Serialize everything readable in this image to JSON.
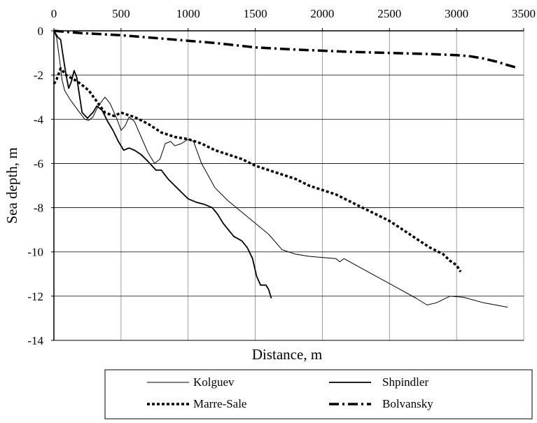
{
  "chart_data": {
    "type": "line",
    "title": "",
    "xlabel": "Distance, m",
    "ylabel": "Sea depth, m",
    "xlim": [
      0,
      3500
    ],
    "ylim": [
      -14,
      0
    ],
    "x_ticks": [
      0,
      500,
      1000,
      1500,
      2000,
      2500,
      3000,
      3500
    ],
    "y_ticks": [
      0,
      -2,
      -4,
      -6,
      -8,
      -10,
      -12,
      -14
    ],
    "x_tick_labels": [
      "0",
      "500",
      "1000",
      "1500",
      "2000",
      "2500",
      "3000",
      "3500"
    ],
    "y_tick_labels": [
      "0",
      "-2",
      "-4",
      "-6",
      "-8",
      "-10",
      "-12",
      "-14"
    ],
    "x_axis_position": "top",
    "grid": "vertical and horizontal",
    "legend_position": "bottom",
    "series": [
      {
        "name": "Kolguev",
        "style": "thin-solid",
        "color": "#000000",
        "points": [
          [
            0,
            0
          ],
          [
            20,
            -0.3
          ],
          [
            40,
            -1.2
          ],
          [
            60,
            -2.2
          ],
          [
            80,
            -2.7
          ],
          [
            120,
            -3.1
          ],
          [
            180,
            -3.6
          ],
          [
            230,
            -4.0
          ],
          [
            260,
            -4.05
          ],
          [
            290,
            -3.9
          ],
          [
            330,
            -3.4
          ],
          [
            380,
            -3.0
          ],
          [
            420,
            -3.3
          ],
          [
            470,
            -4.0
          ],
          [
            500,
            -4.5
          ],
          [
            530,
            -4.3
          ],
          [
            560,
            -3.9
          ],
          [
            600,
            -4.1
          ],
          [
            650,
            -4.8
          ],
          [
            700,
            -5.5
          ],
          [
            750,
            -6.0
          ],
          [
            790,
            -5.8
          ],
          [
            830,
            -5.1
          ],
          [
            870,
            -5.0
          ],
          [
            900,
            -5.2
          ],
          [
            950,
            -5.1
          ],
          [
            1000,
            -4.9
          ],
          [
            1040,
            -5.0
          ],
          [
            1100,
            -6.0
          ],
          [
            1200,
            -7.1
          ],
          [
            1300,
            -7.7
          ],
          [
            1400,
            -8.2
          ],
          [
            1500,
            -8.7
          ],
          [
            1600,
            -9.2
          ],
          [
            1700,
            -9.9
          ],
          [
            1800,
            -10.1
          ],
          [
            1900,
            -10.2
          ],
          [
            2000,
            -10.25
          ],
          [
            2100,
            -10.3
          ],
          [
            2130,
            -10.45
          ],
          [
            2160,
            -10.3
          ],
          [
            2250,
            -10.6
          ],
          [
            2400,
            -11.1
          ],
          [
            2550,
            -11.6
          ],
          [
            2700,
            -12.1
          ],
          [
            2780,
            -12.4
          ],
          [
            2850,
            -12.3
          ],
          [
            2950,
            -12.0
          ],
          [
            3050,
            -12.05
          ],
          [
            3200,
            -12.3
          ],
          [
            3380,
            -12.5
          ]
        ]
      },
      {
        "name": "Shpindler",
        "style": "medium-solid",
        "color": "#000000",
        "points": [
          [
            0,
            0
          ],
          [
            30,
            -0.3
          ],
          [
            50,
            -0.4
          ],
          [
            70,
            -1.2
          ],
          [
            90,
            -2.0
          ],
          [
            110,
            -2.6
          ],
          [
            130,
            -2.3
          ],
          [
            150,
            -1.8
          ],
          [
            170,
            -2.1
          ],
          [
            190,
            -2.9
          ],
          [
            210,
            -3.7
          ],
          [
            250,
            -3.95
          ],
          [
            290,
            -3.7
          ],
          [
            320,
            -3.4
          ],
          [
            360,
            -3.6
          ],
          [
            400,
            -4.1
          ],
          [
            440,
            -4.5
          ],
          [
            480,
            -5.0
          ],
          [
            520,
            -5.4
          ],
          [
            560,
            -5.3
          ],
          [
            600,
            -5.4
          ],
          [
            650,
            -5.6
          ],
          [
            700,
            -5.9
          ],
          [
            760,
            -6.3
          ],
          [
            800,
            -6.3
          ],
          [
            850,
            -6.7
          ],
          [
            900,
            -7.0
          ],
          [
            950,
            -7.3
          ],
          [
            1000,
            -7.6
          ],
          [
            1060,
            -7.75
          ],
          [
            1120,
            -7.85
          ],
          [
            1180,
            -8.0
          ],
          [
            1220,
            -8.3
          ],
          [
            1260,
            -8.7
          ],
          [
            1300,
            -9.0
          ],
          [
            1340,
            -9.3
          ],
          [
            1400,
            -9.5
          ],
          [
            1440,
            -9.8
          ],
          [
            1480,
            -10.3
          ],
          [
            1510,
            -11.1
          ],
          [
            1540,
            -11.5
          ],
          [
            1580,
            -11.5
          ],
          [
            1600,
            -11.7
          ],
          [
            1620,
            -12.1
          ]
        ]
      },
      {
        "name": "Marre-Sale",
        "style": "short-dash",
        "color": "#000000",
        "points": [
          [
            0,
            -2.4
          ],
          [
            20,
            -2.2
          ],
          [
            50,
            -1.7
          ],
          [
            90,
            -2.0
          ],
          [
            150,
            -2.2
          ],
          [
            200,
            -2.4
          ],
          [
            260,
            -2.7
          ],
          [
            320,
            -3.2
          ],
          [
            380,
            -3.7
          ],
          [
            450,
            -3.85
          ],
          [
            500,
            -3.7
          ],
          [
            550,
            -3.8
          ],
          [
            600,
            -3.9
          ],
          [
            700,
            -4.2
          ],
          [
            800,
            -4.6
          ],
          [
            900,
            -4.8
          ],
          [
            1000,
            -4.9
          ],
          [
            1100,
            -5.1
          ],
          [
            1200,
            -5.4
          ],
          [
            1300,
            -5.6
          ],
          [
            1400,
            -5.8
          ],
          [
            1500,
            -6.1
          ],
          [
            1600,
            -6.3
          ],
          [
            1700,
            -6.5
          ],
          [
            1800,
            -6.7
          ],
          [
            1900,
            -7.0
          ],
          [
            2000,
            -7.2
          ],
          [
            2100,
            -7.4
          ],
          [
            2200,
            -7.7
          ],
          [
            2300,
            -8.0
          ],
          [
            2400,
            -8.3
          ],
          [
            2500,
            -8.6
          ],
          [
            2600,
            -9.0
          ],
          [
            2700,
            -9.4
          ],
          [
            2800,
            -9.8
          ],
          [
            2900,
            -10.1
          ],
          [
            2950,
            -10.4
          ],
          [
            3000,
            -10.6
          ],
          [
            3030,
            -10.9
          ]
        ]
      },
      {
        "name": "Bolvansky",
        "style": "dash-dot",
        "color": "#000000",
        "points": [
          [
            0,
            0
          ],
          [
            200,
            -0.1
          ],
          [
            500,
            -0.2
          ],
          [
            800,
            -0.35
          ],
          [
            1000,
            -0.45
          ],
          [
            1200,
            -0.55
          ],
          [
            1500,
            -0.75
          ],
          [
            1800,
            -0.85
          ],
          [
            2000,
            -0.9
          ],
          [
            2200,
            -0.95
          ],
          [
            2500,
            -1.0
          ],
          [
            2800,
            -1.05
          ],
          [
            3000,
            -1.1
          ],
          [
            3100,
            -1.15
          ],
          [
            3200,
            -1.25
          ],
          [
            3300,
            -1.4
          ],
          [
            3380,
            -1.55
          ],
          [
            3440,
            -1.65
          ]
        ]
      }
    ]
  }
}
